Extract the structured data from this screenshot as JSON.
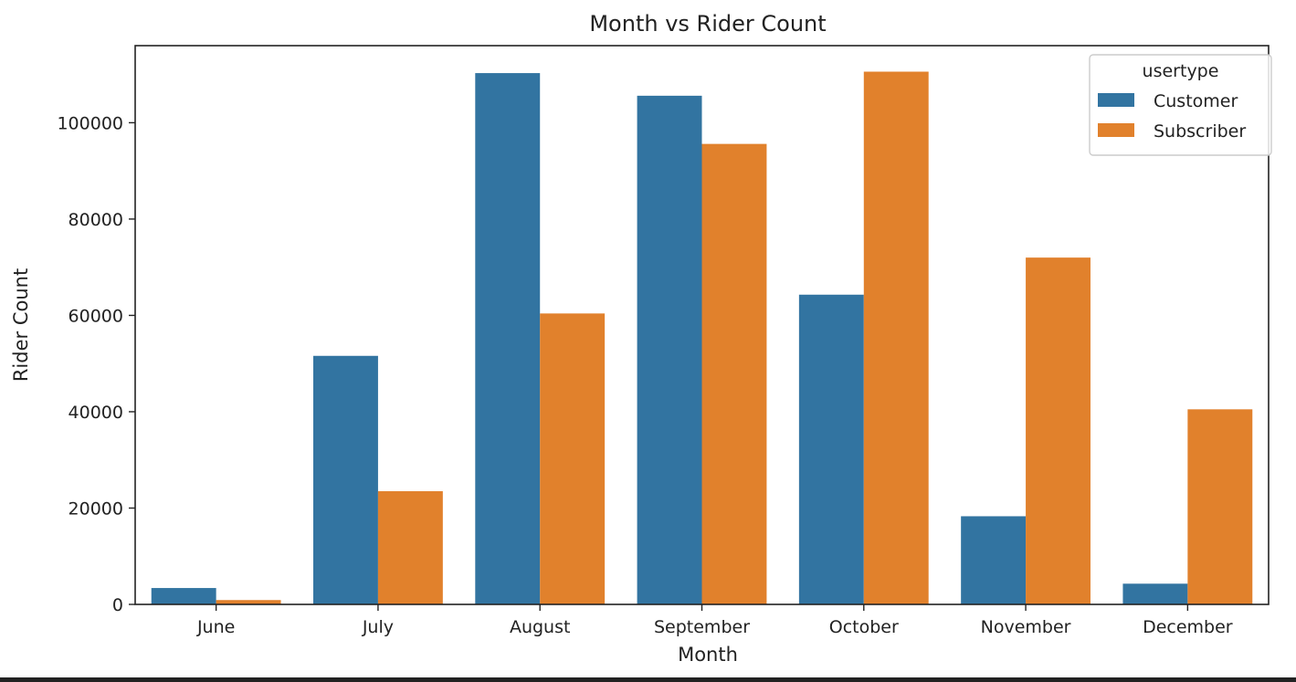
{
  "chart_data": {
    "type": "bar",
    "title": "Month vs Rider Count",
    "xlabel": "Month",
    "ylabel": "Rider Count",
    "categories": [
      "June",
      "July",
      "August",
      "September",
      "October",
      "November",
      "December"
    ],
    "series": [
      {
        "name": "Customer",
        "color": "#3274a1",
        "values": [
          3400,
          51600,
          110300,
          105600,
          64300,
          18300,
          4300
        ]
      },
      {
        "name": "Subscriber",
        "color": "#e1812c",
        "values": [
          900,
          23500,
          60400,
          95600,
          110600,
          72000,
          40500
        ]
      }
    ],
    "ylim": [
      0,
      116000
    ],
    "yticks": [
      0,
      20000,
      40000,
      60000,
      80000,
      100000
    ],
    "legend": {
      "title": "usertype",
      "position": "top-right"
    },
    "grid": false
  }
}
